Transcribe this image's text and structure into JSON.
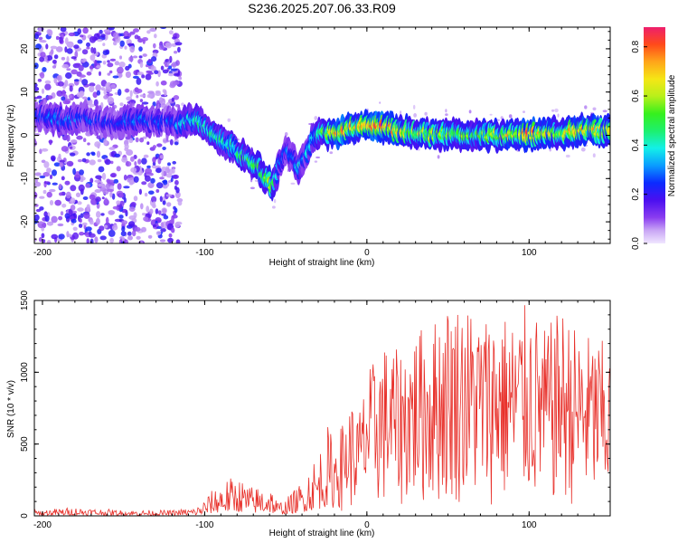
{
  "title": "S236.2025.207.06.33.R09",
  "colors": {
    "snr_line": "#e8302a",
    "frame": "#000000"
  },
  "chart_data": [
    {
      "type": "heatmap",
      "xlabel": "Height of straight line (km)",
      "ylabel": "Frequency (Hz)",
      "xlim": [
        -205,
        150
      ],
      "ylim": [
        -25,
        25
      ],
      "xticks": [
        "-200",
        "-100",
        "0",
        "100"
      ],
      "xtick_values": [
        -200,
        -100,
        0,
        100
      ],
      "yticks": [
        "-20",
        "-10",
        "0",
        "10",
        "20"
      ],
      "ytick_values": [
        -20,
        -10,
        0,
        10,
        20
      ],
      "colorbar": {
        "label": "Normalized spectral amplitude",
        "range": [
          0,
          0.88
        ],
        "ticks": [
          "0.0",
          "0.2",
          "0.4",
          "0.6",
          "0.8"
        ],
        "tick_values": [
          0.0,
          0.2,
          0.4,
          0.6,
          0.8
        ]
      },
      "ridge": {
        "x": [
          -205,
          -195,
          -185,
          -175,
          -165,
          -155,
          -145,
          -135,
          -125,
          -115,
          -105,
          -98,
          -90,
          -82,
          -75,
          -68,
          -62,
          -58,
          -55,
          -50,
          -46,
          -42,
          -38,
          -34,
          -30,
          -25,
          -20,
          -15,
          -10,
          -5,
          0,
          5,
          10,
          15,
          20,
          30,
          40,
          50,
          60,
          70,
          80,
          90,
          100,
          110,
          120,
          130,
          140,
          150
        ],
        "y": [
          4.5,
          4,
          3.5,
          4,
          3,
          3,
          3.5,
          3.5,
          3,
          3,
          4,
          1,
          -1,
          -3,
          -5,
          -7,
          -10,
          -12,
          -8,
          -3,
          -5,
          -8,
          -5,
          -1,
          0,
          0.5,
          0.8,
          1,
          1.5,
          2,
          2.5,
          2.5,
          2,
          1.5,
          1,
          0.5,
          0,
          0.5,
          0,
          0.5,
          0,
          0.5,
          0,
          0.5,
          0.5,
          1,
          1,
          1
        ],
        "peak_amplitude": [
          0.25,
          0.3,
          0.3,
          0.3,
          0.25,
          0.25,
          0.3,
          0.3,
          0.25,
          0.35,
          0.45,
          0.5,
          0.45,
          0.45,
          0.5,
          0.55,
          0.6,
          0.6,
          0.4,
          0.3,
          0.35,
          0.4,
          0.35,
          0.4,
          0.5,
          0.6,
          0.75,
          0.8,
          0.75,
          0.7,
          0.75,
          0.8,
          0.85,
          0.75,
          0.7,
          0.6,
          0.65,
          0.6,
          0.55,
          0.6,
          0.6,
          0.7,
          0.85,
          0.7,
          0.65,
          0.75,
          0.7,
          0.65
        ]
      },
      "noise_region": {
        "x": [
          -205,
          -115
        ],
        "y": [
          -25,
          25
        ],
        "amplitude": [
          0.05,
          0.25
        ]
      }
    },
    {
      "type": "line",
      "xlabel": "Height of straight line (km)",
      "ylabel": "SNR (10 * v/v)",
      "xlim": [
        -205,
        150
      ],
      "ylim": [
        0,
        1500
      ],
      "xticks": [
        "-200",
        "-100",
        "0",
        "100"
      ],
      "xtick_values": [
        -200,
        -100,
        0,
        100
      ],
      "yticks": [
        "0",
        "500",
        "1000",
        "1500"
      ],
      "ytick_values": [
        0,
        500,
        1000,
        1500
      ],
      "envelope": {
        "x": [
          -205,
          -180,
          -150,
          -120,
          -105,
          -100,
          -90,
          -80,
          -70,
          -60,
          -55,
          -50,
          -45,
          -40,
          -35,
          -30,
          -25,
          -20,
          -15,
          -10,
          -5,
          0,
          10,
          20,
          30,
          40,
          50,
          60,
          70,
          80,
          90,
          100,
          110,
          120,
          130,
          140,
          150
        ],
        "y": [
          40,
          60,
          40,
          40,
          60,
          120,
          250,
          280,
          200,
          230,
          100,
          120,
          180,
          250,
          380,
          450,
          650,
          550,
          650,
          800,
          720,
          1000,
          1200,
          1150,
          1300,
          1350,
          1500,
          1500,
          1400,
          1450,
          1380,
          1500,
          1300,
          1450,
          1300,
          1250,
          1200
        ]
      }
    }
  ]
}
